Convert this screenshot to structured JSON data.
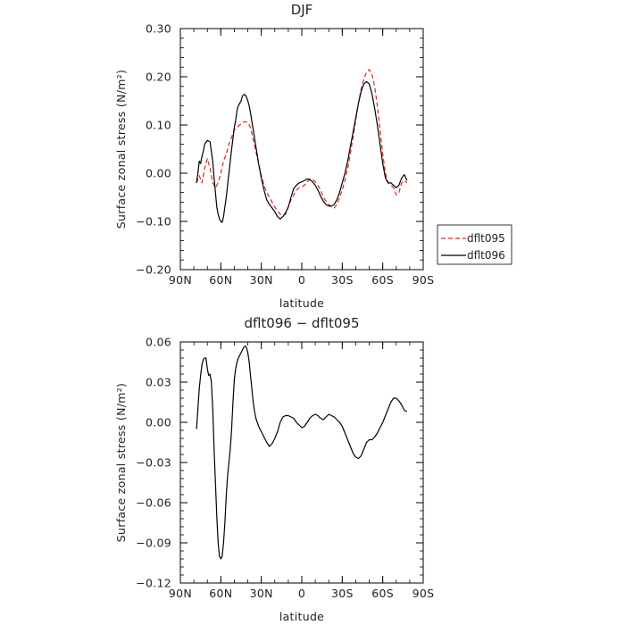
{
  "chart_data": [
    {
      "type": "line",
      "title": "DJF",
      "xlabel": "latitude",
      "ylabel": "Surface zonal stress (N/m²)",
      "xlim": [
        90,
        -90
      ],
      "ylim": [
        -0.2,
        0.3
      ],
      "x_ticks": [
        90,
        60,
        30,
        0,
        -30,
        -60,
        -90
      ],
      "x_tick_labels": [
        "90N",
        "60N",
        "30N",
        "0",
        "30S",
        "60S",
        "90S"
      ],
      "y_ticks": [
        -0.2,
        -0.1,
        0.0,
        0.1,
        0.2,
        0.3
      ],
      "y_tick_labels": [
        "−0.20",
        "−0.10",
        "0.00",
        "0.10",
        "0.20",
        "0.30"
      ],
      "legend": {
        "placement": "outside-right"
      },
      "series": [
        {
          "name": "dflt095",
          "color": "#d62728",
          "dash": "dashed",
          "x": [
            78,
            76,
            74,
            72,
            70,
            68,
            66,
            64,
            62,
            60,
            58,
            56,
            54,
            52,
            50,
            48,
            46,
            44,
            42,
            40,
            38,
            36,
            34,
            32,
            30,
            28,
            26,
            24,
            22,
            20,
            18,
            16,
            14,
            12,
            10,
            8,
            6,
            4,
            2,
            0,
            -2,
            -4,
            -6,
            -8,
            -10,
            -12,
            -14,
            -16,
            -18,
            -20,
            -22,
            -24,
            -26,
            -28,
            -30,
            -32,
            -34,
            -36,
            -38,
            -40,
            -42,
            -44,
            -46,
            -48,
            -50,
            -52,
            -54,
            -56,
            -58,
            -60,
            -62,
            -64,
            -66,
            -68,
            -70,
            -72,
            -74,
            -76,
            -78
          ],
          "y": [
            -0.02,
            -0.005,
            -0.02,
            0.01,
            0.03,
            0.01,
            -0.02,
            -0.03,
            -0.02,
            0.0,
            0.025,
            0.04,
            0.06,
            0.075,
            0.09,
            0.095,
            0.1,
            0.105,
            0.107,
            0.105,
            0.095,
            0.07,
            0.045,
            0.02,
            -0.005,
            -0.025,
            -0.04,
            -0.05,
            -0.06,
            -0.07,
            -0.078,
            -0.085,
            -0.088,
            -0.085,
            -0.07,
            -0.055,
            -0.045,
            -0.035,
            -0.03,
            -0.028,
            -0.025,
            -0.018,
            -0.012,
            -0.013,
            -0.018,
            -0.025,
            -0.035,
            -0.05,
            -0.058,
            -0.065,
            -0.07,
            -0.072,
            -0.065,
            -0.05,
            -0.035,
            -0.015,
            0.01,
            0.04,
            0.075,
            0.11,
            0.145,
            0.175,
            0.195,
            0.21,
            0.215,
            0.205,
            0.18,
            0.14,
            0.09,
            0.04,
            0.0,
            -0.02,
            -0.025,
            -0.03,
            -0.045,
            -0.04,
            -0.02,
            -0.015,
            -0.02
          ]
        },
        {
          "name": "dflt096",
          "color": "#000000",
          "dash": "solid",
          "x": [
            78,
            77,
            76,
            75,
            74,
            73,
            72,
            70,
            68,
            66,
            65,
            64,
            63,
            62,
            61,
            60,
            59,
            58,
            57,
            56,
            55,
            54,
            52,
            50,
            49,
            48,
            47,
            46,
            45,
            44,
            43,
            42,
            41,
            40,
            39,
            38,
            36,
            34,
            32,
            30,
            28,
            26,
            24,
            22,
            20,
            18,
            16,
            14,
            12,
            10,
            8,
            6,
            4,
            2,
            0,
            -2,
            -4,
            -6,
            -8,
            -10,
            -12,
            -14,
            -16,
            -18,
            -20,
            -22,
            -24,
            -26,
            -28,
            -30,
            -32,
            -34,
            -36,
            -38,
            -40,
            -42,
            -44,
            -46,
            -48,
            -50,
            -52,
            -54,
            -56,
            -58,
            -60,
            -62,
            -64,
            -66,
            -68,
            -70,
            -72,
            -74,
            -76,
            -78
          ],
          "y": [
            -0.02,
            0.0,
            0.025,
            0.02,
            0.035,
            0.045,
            0.06,
            0.068,
            0.065,
            0.025,
            -0.01,
            -0.04,
            -0.07,
            -0.085,
            -0.095,
            -0.1,
            -0.102,
            -0.09,
            -0.07,
            -0.05,
            -0.025,
            0.0,
            0.05,
            0.095,
            0.11,
            0.13,
            0.14,
            0.145,
            0.15,
            0.16,
            0.163,
            0.163,
            0.158,
            0.15,
            0.14,
            0.125,
            0.09,
            0.055,
            0.02,
            -0.01,
            -0.035,
            -0.055,
            -0.065,
            -0.072,
            -0.08,
            -0.09,
            -0.095,
            -0.09,
            -0.082,
            -0.07,
            -0.05,
            -0.032,
            -0.025,
            -0.02,
            -0.018,
            -0.015,
            -0.012,
            -0.013,
            -0.018,
            -0.025,
            -0.035,
            -0.048,
            -0.058,
            -0.065,
            -0.068,
            -0.068,
            -0.065,
            -0.055,
            -0.04,
            -0.02,
            0.0,
            0.025,
            0.055,
            0.085,
            0.115,
            0.145,
            0.17,
            0.185,
            0.19,
            0.185,
            0.165,
            0.135,
            0.1,
            0.06,
            0.02,
            -0.01,
            -0.02,
            -0.02,
            -0.025,
            -0.03,
            -0.025,
            -0.01,
            -0.003,
            -0.015
          ]
        }
      ]
    },
    {
      "type": "line",
      "title": "dflt096 − dflt095",
      "xlabel": "latitude",
      "ylabel": "Surface zonal stress (N/m²)",
      "xlim": [
        90,
        -90
      ],
      "ylim": [
        -0.12,
        0.06
      ],
      "x_ticks": [
        90,
        60,
        30,
        0,
        -30,
        -60,
        -90
      ],
      "x_tick_labels": [
        "90N",
        "60N",
        "30N",
        "0",
        "30S",
        "60S",
        "90S"
      ],
      "y_ticks": [
        -0.12,
        -0.09,
        -0.06,
        -0.03,
        0.0,
        0.03,
        0.06
      ],
      "y_tick_labels": [
        "−0.12",
        "−0.09",
        "−0.06",
        "−0.03",
        "0.00",
        "0.03",
        "0.06"
      ],
      "series": [
        {
          "color": "#000000",
          "dash": "solid",
          "x": [
            78,
            77,
            76,
            75,
            74,
            73,
            72,
            71,
            70,
            69,
            68,
            67,
            66,
            65,
            64,
            63,
            62,
            61,
            60,
            59,
            58,
            57,
            56,
            55,
            54,
            53,
            52,
            51,
            50,
            49,
            48,
            47,
            46,
            45,
            44,
            43,
            42,
            41,
            40,
            39,
            38,
            37,
            36,
            35,
            34,
            33,
            32,
            30,
            28,
            26,
            24,
            22,
            20,
            18,
            16,
            14,
            12,
            10,
            8,
            6,
            4,
            2,
            0,
            -2,
            -4,
            -6,
            -8,
            -10,
            -12,
            -14,
            -16,
            -18,
            -20,
            -22,
            -24,
            -26,
            -28,
            -30,
            -32,
            -34,
            -36,
            -38,
            -40,
            -42,
            -44,
            -46,
            -48,
            -50,
            -52,
            -54,
            -56,
            -58,
            -60,
            -62,
            -64,
            -66,
            -68,
            -70,
            -72,
            -74,
            -76,
            -78
          ],
          "y": [
            -0.005,
            0.01,
            0.025,
            0.035,
            0.043,
            0.047,
            0.048,
            0.048,
            0.04,
            0.035,
            0.036,
            0.03,
            0.01,
            -0.02,
            -0.045,
            -0.07,
            -0.09,
            -0.1,
            -0.102,
            -0.1,
            -0.09,
            -0.075,
            -0.055,
            -0.04,
            -0.03,
            -0.02,
            -0.005,
            0.015,
            0.032,
            0.04,
            0.045,
            0.048,
            0.05,
            0.052,
            0.054,
            0.056,
            0.057,
            0.056,
            0.052,
            0.045,
            0.035,
            0.025,
            0.015,
            0.008,
            0.003,
            0.0,
            -0.003,
            -0.007,
            -0.011,
            -0.015,
            -0.018,
            -0.016,
            -0.012,
            -0.007,
            0.0,
            0.004,
            0.005,
            0.005,
            0.004,
            0.003,
            0.0,
            -0.002,
            -0.004,
            -0.003,
            0.0,
            0.003,
            0.005,
            0.006,
            0.005,
            0.003,
            0.002,
            0.004,
            0.006,
            0.005,
            0.004,
            0.002,
            0.0,
            -0.003,
            -0.008,
            -0.013,
            -0.018,
            -0.023,
            -0.026,
            -0.027,
            -0.025,
            -0.02,
            -0.015,
            -0.013,
            -0.013,
            -0.011,
            -0.008,
            -0.004,
            0.0,
            0.005,
            0.01,
            0.015,
            0.018,
            0.018,
            0.016,
            0.013,
            0.009,
            0.008
          ]
        }
      ]
    }
  ]
}
